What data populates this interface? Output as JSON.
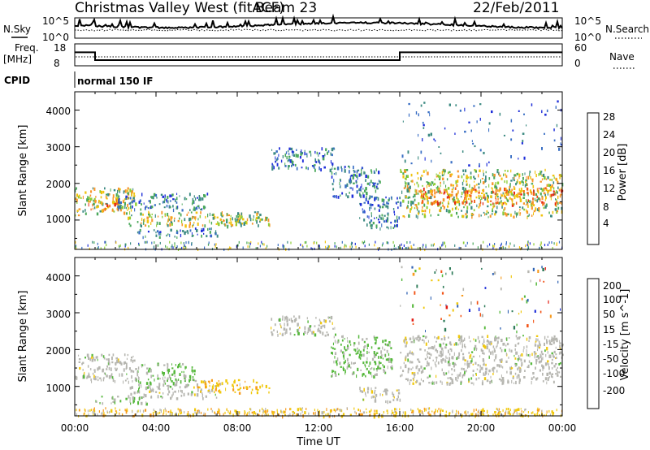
{
  "header": {
    "title": "Christmas Valley West (fitACF)",
    "beam": "Beam 23",
    "date": "22/Feb/2011"
  },
  "noise_panel": {
    "left_label": "N.Sky",
    "right_label": "N.Search",
    "ticks_left": [
      "10^5",
      "10^0"
    ],
    "ticks_right": [
      "10^5",
      "10^0"
    ]
  },
  "freq_panel": {
    "left_label_1": "Freq.",
    "left_label_2": "[MHz]",
    "right_label": "Nave",
    "ticks_left": [
      "18",
      "8"
    ],
    "ticks_right": [
      "60",
      "0"
    ],
    "freq_segments": [
      {
        "t0": 0.0,
        "t1": 1.0,
        "mhz": 14.5
      },
      {
        "t0": 1.0,
        "t1": 16.0,
        "mhz": 10.5
      },
      {
        "t0": 16.0,
        "t1": 24.0,
        "mhz": 14.5
      }
    ]
  },
  "cpid_panel": {
    "label": "CPID",
    "mode_text": "normal 150 IF"
  },
  "chart_data": [
    {
      "type": "heatmap",
      "name": "power",
      "ylabel": "Slant Range [km]",
      "yticks": [
        "1000",
        "2000",
        "3000",
        "4000"
      ],
      "ylim": [
        200,
        4500
      ],
      "xlim": [
        0,
        24
      ],
      "colorbar": {
        "label": "Power [dB]",
        "ticks": [
          "4",
          "8",
          "12",
          "16",
          "20",
          "24",
          "28"
        ],
        "colors": [
          "#1f2fd9",
          "#3a6fc4",
          "#3c8a82",
          "#4aa85a",
          "#8ccd36",
          "#f0c20e",
          "#f7962a",
          "#f2601a",
          "#e52a12"
        ]
      },
      "regions": [
        {
          "t0": 0.0,
          "t1": 3.0,
          "r0": 1150,
          "r1": 1900,
          "level": "mid"
        },
        {
          "t0": 0.6,
          "t1": 2.6,
          "r0": 1300,
          "r1": 1600,
          "level": "high"
        },
        {
          "t0": 2.0,
          "t1": 6.5,
          "r0": 1300,
          "r1": 1750,
          "level": "low"
        },
        {
          "t0": 2.6,
          "t1": 9.2,
          "r0": 850,
          "r1": 1250,
          "level": "mid"
        },
        {
          "t0": 3.0,
          "t1": 7.0,
          "r0": 550,
          "r1": 800,
          "level": "low"
        },
        {
          "t0": 7.0,
          "t1": 9.8,
          "r0": 900,
          "r1": 1150,
          "level": "mid"
        },
        {
          "t0": 9.6,
          "t1": 12.8,
          "r0": 2400,
          "r1": 3000,
          "level": "low"
        },
        {
          "t0": 12.6,
          "t1": 15.0,
          "r0": 1600,
          "r1": 2500,
          "level": "low"
        },
        {
          "t0": 14.0,
          "t1": 16.0,
          "r0": 800,
          "r1": 1700,
          "level": "low"
        },
        {
          "t0": 16.0,
          "t1": 24.0,
          "r0": 1100,
          "r1": 2400,
          "level": "mid"
        },
        {
          "t0": 17.0,
          "t1": 24.0,
          "r0": 1450,
          "r1": 1900,
          "level": "high"
        },
        {
          "t0": 16.0,
          "t1": 24.0,
          "r0": 2500,
          "r1": 4300,
          "level": "sparse"
        }
      ]
    },
    {
      "type": "heatmap",
      "name": "velocity",
      "ylabel": "Slant Range [km]",
      "yticks": [
        "1000",
        "2000",
        "3000",
        "4000"
      ],
      "ylim": [
        200,
        4500
      ],
      "xlim": [
        0,
        24
      ],
      "xticks": [
        "00:00",
        "04:00",
        "08:00",
        "12:00",
        "16:00",
        "20:00",
        "00:00"
      ],
      "xlabel": "Time UT",
      "colorbar": {
        "label": "Velocity [m s^-1]",
        "ticks": [
          "200",
          "100",
          "50",
          "15",
          "-15",
          "-50",
          "-100",
          "-200"
        ],
        "colors": [
          "#1f2fd9",
          "#2f62b3",
          "#2f7c5a",
          "#56b83c",
          "#b6b6b0",
          "#f0c80e",
          "#f79a1c",
          "#f25316",
          "#e21a12"
        ]
      },
      "regions": [
        {
          "t0": 0.0,
          "t1": 3.0,
          "r0": 1150,
          "r1": 1900,
          "level": "ground"
        },
        {
          "t0": 3.0,
          "t1": 6.0,
          "r0": 1100,
          "r1": 1650,
          "level": "green"
        },
        {
          "t0": 2.6,
          "t1": 7.0,
          "r0": 700,
          "r1": 1100,
          "level": "ground"
        },
        {
          "t0": 1.0,
          "t1": 3.5,
          "r0": 550,
          "r1": 750,
          "level": "green"
        },
        {
          "t0": 6.0,
          "t1": 9.6,
          "r0": 850,
          "r1": 1200,
          "level": "orange"
        },
        {
          "t0": 9.6,
          "t1": 12.8,
          "r0": 2400,
          "r1": 2950,
          "level": "ground"
        },
        {
          "t0": 12.6,
          "t1": 15.6,
          "r0": 1300,
          "r1": 2400,
          "level": "green"
        },
        {
          "t0": 14.0,
          "t1": 16.0,
          "r0": 600,
          "r1": 1000,
          "level": "ground"
        },
        {
          "t0": 16.0,
          "t1": 24.0,
          "r0": 1100,
          "r1": 2400,
          "level": "ground"
        },
        {
          "t0": 16.0,
          "t1": 24.0,
          "r0": 2500,
          "r1": 4300,
          "level": "sparse"
        },
        {
          "t0": 0.0,
          "t1": 24.0,
          "r0": 220,
          "r1": 420,
          "level": "orange"
        }
      ]
    }
  ]
}
